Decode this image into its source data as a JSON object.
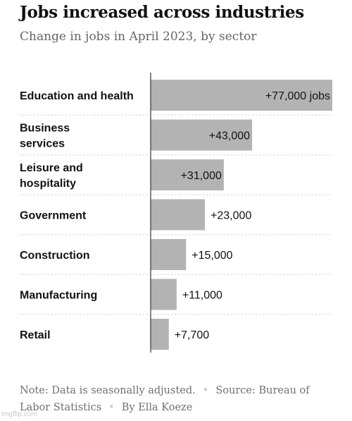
{
  "header": {
    "title": "Jobs increased across industries",
    "subtitle": "Change in jobs in April 2023, by sector"
  },
  "chart_data": {
    "type": "bar",
    "orientation": "horizontal",
    "categories": [
      [
        "Education and health"
      ],
      [
        "Business",
        "services"
      ],
      [
        "Leisure and",
        "hospitality"
      ],
      [
        "Government"
      ],
      [
        "Construction"
      ],
      [
        "Manufacturing"
      ],
      [
        "Retail"
      ]
    ],
    "values": [
      77000,
      43000,
      31000,
      23000,
      15000,
      11000,
      7700
    ],
    "value_labels": [
      "+77,000 jobs",
      "+43,000",
      "+31,000",
      "+23,000",
      "+15,000",
      "+11,000",
      "+7,700"
    ],
    "xlim": [
      0,
      77000
    ],
    "grid": false,
    "bar_color": "#b3b3b3",
    "separator_color": "#dcdcdc",
    "axis_color": "#333333"
  },
  "footer": {
    "note": "Note: Data is seasonally adjusted.",
    "source": "Source: Bureau of Labor Statistics",
    "byline": "By Ella Koeze",
    "separator": "•"
  },
  "watermark": "imgflip.com"
}
